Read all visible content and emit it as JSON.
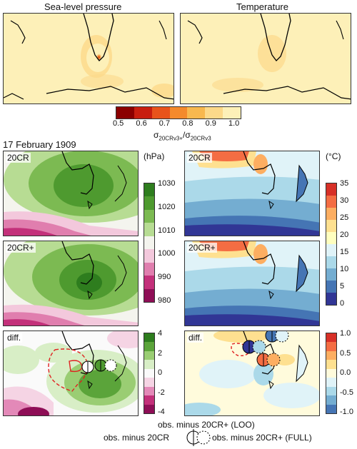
{
  "top_titles": [
    "Sea-level pressure",
    "Temperature"
  ],
  "top_colorbar": {
    "ticks": [
      "0.5",
      "0.6",
      "0.7",
      "0.8",
      "0.9",
      "1.0"
    ],
    "label": "σ20CRv3+/σ20CRv3",
    "label_main": "σ",
    "label_sub1": "20CRv3+",
    "label_sep": "/σ",
    "label_sub2": "20CRv3",
    "colors": [
      "#8b0000",
      "#c81e0f",
      "#e8531b",
      "#f48a2c",
      "#f8b84f",
      "#fcd98a",
      "#fdf0b8"
    ]
  },
  "date": "17 February 1909",
  "slp": {
    "unit": "(hPa)",
    "panel_labels": [
      "20CR",
      "20CR+",
      "diff."
    ],
    "ticks_abs": [
      "1030",
      "1020",
      "1010",
      "1000",
      "990",
      "980"
    ],
    "ticks_diff": [
      "4",
      "2",
      "0",
      "-2",
      "-4"
    ],
    "colors_abs": [
      "#2e7d1e",
      "#4e9a2f",
      "#7cba52",
      "#b7dc93",
      "#f4f4ee",
      "#f3c8dc",
      "#e07eae",
      "#c3307a",
      "#8e0e56"
    ],
    "colors_diff": [
      "#2e7d1e",
      "#5ba43a",
      "#9acd73",
      "#d8eec6",
      "#fafafa",
      "#f5d4e4",
      "#e389b8",
      "#c3307a",
      "#8e0e56"
    ]
  },
  "temp": {
    "unit": "(°C)",
    "panel_labels": [
      "20CR",
      "20CR+",
      "diff."
    ],
    "ticks_abs": [
      "35",
      "30",
      "25",
      "20",
      "15",
      "10",
      "5",
      "0"
    ],
    "ticks_diff": [
      "1.0",
      "0.5",
      "0.0",
      "-0.5",
      "-1.0"
    ],
    "colors_abs": [
      "#d73027",
      "#f46d43",
      "#fdae61",
      "#fee090",
      "#ffffbf",
      "#e0f3f8",
      "#abd9e9",
      "#74add1",
      "#4575b4",
      "#313695"
    ],
    "colors_diff": [
      "#d73027",
      "#f46d43",
      "#fdae61",
      "#fee090",
      "#fffbdc",
      "#e0f3f8",
      "#abd9e9",
      "#74add1",
      "#4575b4"
    ]
  },
  "legend": {
    "loo": "obs. minus 20CR+ (LOO)",
    "obs_20cr": "obs. minus 20CR",
    "full": "obs. minus 20CR+ (FULL)"
  }
}
